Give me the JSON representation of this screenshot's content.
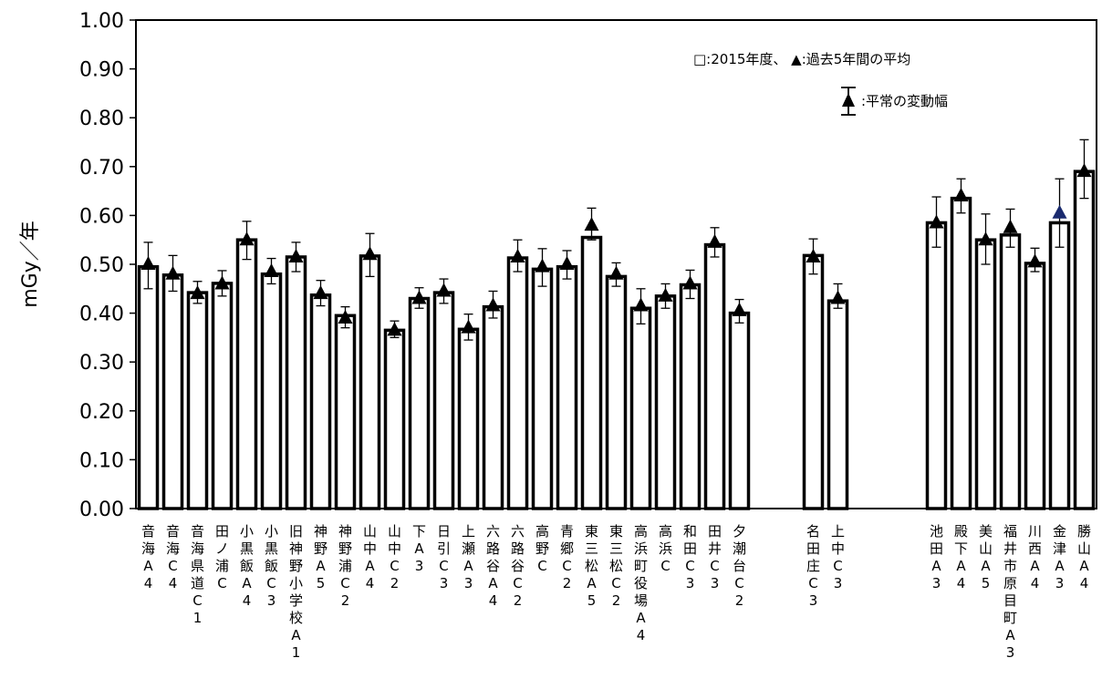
{
  "chart_data": {
    "type": "bar",
    "ylabel": "mGy／年",
    "ylim": [
      0,
      1.0
    ],
    "yticks": [
      "0.00",
      "0.10",
      "0.20",
      "0.30",
      "0.40",
      "0.50",
      "0.60",
      "0.70",
      "0.80",
      "0.90",
      "1.00"
    ],
    "legend": {
      "line1": "□:2015年度、 ▲:過去5年間の平均",
      "line2": ":平常の変動幅"
    },
    "slots": [
      {
        "label": "音海A4",
        "value": 0.495,
        "avg": 0.5,
        "lo": 0.45,
        "hi": 0.545
      },
      {
        "label": "音海C4",
        "value": 0.478,
        "avg": 0.48,
        "lo": 0.445,
        "hi": 0.518
      },
      {
        "label": "音海県道C1",
        "value": 0.442,
        "avg": 0.44,
        "lo": 0.42,
        "hi": 0.465
      },
      {
        "label": "田ノ浦C",
        "value": 0.461,
        "avg": 0.46,
        "lo": 0.435,
        "hi": 0.487
      },
      {
        "label": "小黒飯A4",
        "value": 0.55,
        "avg": 0.55,
        "lo": 0.51,
        "hi": 0.588
      },
      {
        "label": "小黒飯C3",
        "value": 0.48,
        "avg": 0.485,
        "lo": 0.46,
        "hi": 0.512
      },
      {
        "label": "旧神野小学校A1",
        "value": 0.515,
        "avg": 0.515,
        "lo": 0.485,
        "hi": 0.545
      },
      {
        "label": "神野A5",
        "value": 0.437,
        "avg": 0.44,
        "lo": 0.415,
        "hi": 0.467
      },
      {
        "label": "神野浦C2",
        "value": 0.395,
        "avg": 0.39,
        "lo": 0.37,
        "hi": 0.413
      },
      {
        "label": "山中A4",
        "value": 0.517,
        "avg": 0.52,
        "lo": 0.475,
        "hi": 0.563
      },
      {
        "label": "山中C2",
        "value": 0.365,
        "avg": 0.365,
        "lo": 0.35,
        "hi": 0.384
      },
      {
        "label": "下A3",
        "value": 0.43,
        "avg": 0.43,
        "lo": 0.41,
        "hi": 0.452
      },
      {
        "label": "日引C3",
        "value": 0.442,
        "avg": 0.445,
        "lo": 0.42,
        "hi": 0.47
      },
      {
        "label": "上瀬A3",
        "value": 0.367,
        "avg": 0.37,
        "lo": 0.345,
        "hi": 0.398
      },
      {
        "label": "六路谷A4",
        "value": 0.413,
        "avg": 0.415,
        "lo": 0.39,
        "hi": 0.445
      },
      {
        "label": "六路谷C2",
        "value": 0.513,
        "avg": 0.515,
        "lo": 0.485,
        "hi": 0.55
      },
      {
        "label": "高野C",
        "value": 0.49,
        "avg": 0.495,
        "lo": 0.455,
        "hi": 0.532
      },
      {
        "label": "青郷C2",
        "value": 0.495,
        "avg": 0.5,
        "lo": 0.47,
        "hi": 0.528
      },
      {
        "label": "東三松A5",
        "value": 0.555,
        "avg": 0.58,
        "lo": 0.55,
        "hi": 0.615
      },
      {
        "label": "東三松C2",
        "value": 0.475,
        "avg": 0.48,
        "lo": 0.455,
        "hi": 0.503
      },
      {
        "label": "高浜町役場A4",
        "value": 0.41,
        "avg": 0.415,
        "lo": 0.378,
        "hi": 0.45
      },
      {
        "label": "高浜C",
        "value": 0.435,
        "avg": 0.435,
        "lo": 0.41,
        "hi": 0.46
      },
      {
        "label": "和田C3",
        "value": 0.458,
        "avg": 0.46,
        "lo": 0.43,
        "hi": 0.488
      },
      {
        "label": "田井C3",
        "value": 0.54,
        "avg": 0.545,
        "lo": 0.515,
        "hi": 0.575
      },
      {
        "label": "夕潮台C2",
        "value": 0.4,
        "avg": 0.405,
        "lo": 0.38,
        "hi": 0.428
      },
      null,
      null,
      {
        "label": "名田庄C3",
        "value": 0.518,
        "avg": 0.515,
        "lo": 0.48,
        "hi": 0.552
      },
      {
        "label": "上中C3",
        "value": 0.425,
        "avg": 0.43,
        "lo": 0.41,
        "hi": 0.46
      },
      null,
      null,
      null,
      {
        "label": "池田A3",
        "value": 0.585,
        "avg": 0.585,
        "lo": 0.535,
        "hi": 0.638
      },
      {
        "label": "殿下A4",
        "value": 0.635,
        "avg": 0.64,
        "lo": 0.605,
        "hi": 0.675
      },
      {
        "label": "美山A5",
        "value": 0.55,
        "avg": 0.55,
        "lo": 0.5,
        "hi": 0.603
      },
      {
        "label": "福井市原目町A3",
        "value": 0.56,
        "avg": 0.575,
        "lo": 0.535,
        "hi": 0.613
      },
      {
        "label": "川西A4",
        "value": 0.502,
        "avg": 0.505,
        "lo": 0.485,
        "hi": 0.533
      },
      {
        "label": "金津A3",
        "value": 0.585,
        "avg": 0.605,
        "lo": 0.535,
        "hi": 0.675
      },
      {
        "label": "勝山A4",
        "value": 0.69,
        "avg": 0.69,
        "lo": 0.635,
        "hi": 0.755
      }
    ],
    "colors": {
      "bar_fill": "#ffffff",
      "bar_stroke": "#000000",
      "marker": "#000000",
      "marker_alt": "#1a2a6e"
    }
  }
}
